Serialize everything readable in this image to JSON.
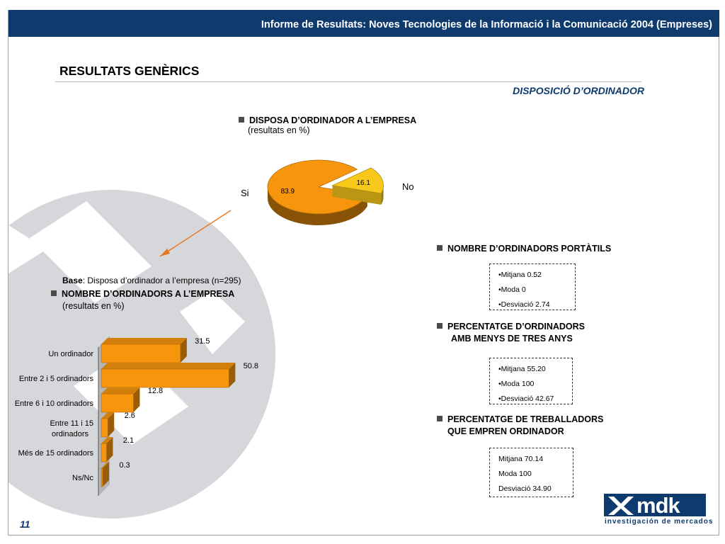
{
  "header": {
    "title": "Informe de Resultats: Noves Tecnologies de la Informació i la Comunicació 2004 (Empreses)"
  },
  "page": {
    "title": "RESULTATS GENÈRICS",
    "subtitle": "DISPOSICIÓ D’ORDINADOR",
    "number": "11"
  },
  "pie_section": {
    "heading": "DISPOSA D’ORDINADOR A L’EMPRESA",
    "note": "(resultats en %)"
  },
  "bar_section": {
    "base_label": "Base",
    "base_text": ": Disposa d’ordinador a l’empresa (n=295)",
    "heading": "NOMBRE D’ORDINADORS A L’EMPRESA",
    "note": "(resultats en %)"
  },
  "chart_data": [
    {
      "type": "pie",
      "labels": [
        "Si",
        "No"
      ],
      "values": [
        83.9,
        16.1
      ],
      "colors": [
        "#f7960d",
        "#f8c81a"
      ]
    },
    {
      "type": "bar",
      "orientation": "horizontal",
      "categories": [
        "Un ordinador",
        "Entre 2 i 5 ordinadors",
        "Entre 6 i 10 ordinadors",
        "Entre 11 i 15 ordinadors",
        "Més de 15 ordinadors",
        "Ns/Nc"
      ],
      "values": [
        31.5,
        50.8,
        12.8,
        2.6,
        2.1,
        0.3
      ],
      "color": "#f7960d"
    }
  ],
  "stats": [
    {
      "heading_lines": [
        "NOMBRE D’ORDINADORS PORTÀTILS"
      ],
      "items": [
        "•Mitjana 0.52",
        "•Moda 0",
        "•Desviació 2.74"
      ]
    },
    {
      "heading_lines": [
        "PERCENTATGE D’ORDINADORS",
        "AMB MENYS DE TRES ANYS"
      ],
      "items": [
        "•Mitjana 55.20",
        "•Moda 100",
        "•Desviació 42.67"
      ]
    },
    {
      "heading_lines": [
        "PERCENTATGE DE TREBALLADORS",
        "QUE EMPREN ORDINADOR"
      ],
      "items": [
        "Mitjana 70.14",
        "Moda 100",
        "Desviació 34.90"
      ]
    }
  ],
  "logo": {
    "text": "mdk",
    "subtitle": "investigación de mercados"
  }
}
